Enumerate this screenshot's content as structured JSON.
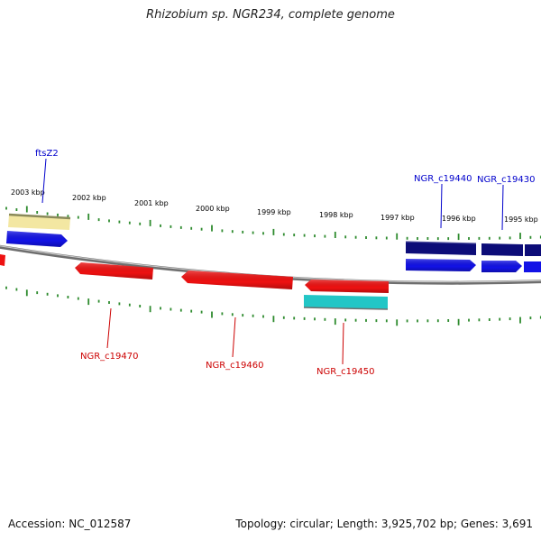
{
  "title": "Rhizobium sp. NGR234, complete genome",
  "footer": {
    "accession": "Accession: NC_012587",
    "stats": "Topology: circular; Length: 3,925,702 bp; Genes: 3,691"
  },
  "colors": {
    "backbone": "#8a8a8a",
    "tick": "#2e8b2e",
    "tick_label": "#000000",
    "forward_cds": "#1010e0",
    "forward_gene": "#0c0c7a",
    "reverse_cds": "#ee1111",
    "rna": "#22c4c4",
    "pseudo": "#f2e6a0",
    "label_forward": "#0000cc",
    "label_reverse": "#cc0000"
  },
  "scale": {
    "ticks": [
      "2003 kbp",
      "2002 kbp",
      "2001 kbp",
      "2000 kbp",
      "1999 kbp",
      "1998 kbp",
      "1997 kbp",
      "1996 kbp",
      "1995 kbp"
    ]
  },
  "features": {
    "labels": [
      "ftsZ2",
      "NGR_c19440",
      "NGR_c19430",
      "NGR_c19470",
      "NGR_c19460",
      "NGR_c19450"
    ]
  }
}
